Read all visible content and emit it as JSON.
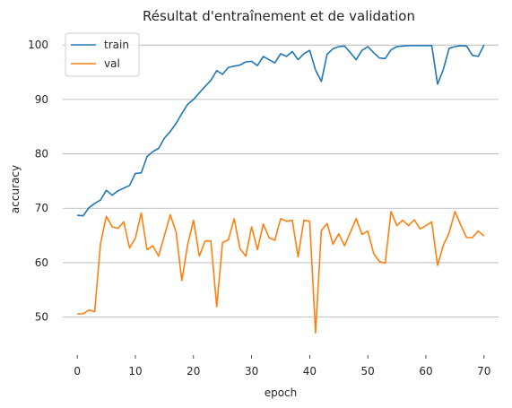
{
  "chart_data": {
    "type": "line",
    "title": "Résultat d'entraînement et de validation",
    "xlabel": "epoch",
    "ylabel": "accuracy",
    "xlim": [
      -2.5,
      72.5
    ],
    "ylim": [
      44.5,
      102.5
    ],
    "xticks": [
      0,
      10,
      20,
      30,
      40,
      50,
      60,
      70
    ],
    "yticks": [
      50,
      60,
      70,
      80,
      90,
      100
    ],
    "grid": "horizontal",
    "legend_position": "top-left",
    "series": [
      {
        "name": "train",
        "color": "#1f77b4",
        "x": [
          0,
          1,
          2,
          3,
          4,
          5,
          6,
          7,
          8,
          9,
          10,
          11,
          12,
          13,
          14,
          15,
          16,
          17,
          18,
          19,
          20,
          21,
          22,
          23,
          24,
          25,
          26,
          27,
          28,
          29,
          30,
          31,
          32,
          33,
          34,
          35,
          36,
          37,
          38,
          39,
          40,
          41,
          42,
          43,
          44,
          45,
          46,
          47,
          48,
          49,
          50,
          51,
          52,
          53,
          54,
          55,
          56,
          57,
          58,
          59,
          60,
          61,
          62,
          63,
          64,
          65,
          66,
          67,
          68,
          69,
          70
        ],
        "values": [
          68.7,
          68.6,
          70.1,
          70.9,
          71.5,
          73.3,
          72.4,
          73.2,
          73.7,
          74.2,
          76.4,
          76.5,
          79.5,
          80.4,
          81.0,
          82.9,
          84.1,
          85.6,
          87.4,
          89.1,
          90.0,
          91.2,
          92.4,
          93.5,
          95.3,
          94.6,
          95.9,
          96.1,
          96.3,
          96.9,
          97.0,
          96.2,
          97.9,
          97.3,
          96.7,
          98.4,
          97.9,
          98.8,
          97.3,
          98.4,
          99.0,
          95.4,
          93.3,
          98.3,
          99.3,
          99.7,
          99.8,
          98.6,
          97.3,
          99.0,
          99.7,
          98.6,
          97.6,
          97.5,
          99.1,
          99.7,
          99.8,
          99.9,
          99.9,
          99.9,
          99.9,
          99.9,
          92.8,
          95.5,
          99.4,
          99.7,
          99.9,
          99.8,
          98.1,
          97.9,
          100.0
        ]
      },
      {
        "name": "val",
        "color": "#ff7f0e",
        "x": [
          0,
          1,
          2,
          3,
          4,
          5,
          6,
          7,
          8,
          9,
          10,
          11,
          12,
          13,
          14,
          15,
          16,
          17,
          18,
          19,
          20,
          21,
          22,
          23,
          24,
          25,
          26,
          27,
          28,
          29,
          30,
          31,
          32,
          33,
          34,
          35,
          36,
          37,
          38,
          39,
          40,
          41,
          42,
          43,
          44,
          45,
          46,
          47,
          48,
          49,
          50,
          51,
          52,
          53,
          54,
          55,
          56,
          57,
          58,
          59,
          60,
          61,
          62,
          63,
          64,
          65,
          66,
          67,
          68,
          69,
          70
        ],
        "values": [
          50.6,
          50.6,
          51.3,
          51.0,
          63.5,
          68.5,
          66.6,
          66.3,
          67.5,
          62.7,
          64.5,
          69.1,
          62.4,
          63.1,
          61.2,
          65.0,
          68.8,
          65.6,
          56.7,
          63.3,
          67.8,
          61.2,
          64.0,
          64.0,
          51.9,
          63.7,
          64.2,
          68.1,
          62.6,
          61.2,
          66.6,
          62.4,
          67.1,
          64.6,
          64.1,
          68.1,
          67.6,
          67.8,
          61.1,
          67.8,
          67.6,
          47.1,
          65.9,
          67.2,
          63.4,
          65.3,
          63.1,
          65.6,
          68.1,
          65.2,
          65.8,
          61.7,
          60.2,
          59.9,
          69.4,
          66.8,
          67.8,
          66.8,
          67.9,
          66.2,
          66.8,
          67.5,
          59.5,
          63.2,
          65.5,
          69.4,
          66.9,
          64.6,
          64.6,
          65.8,
          64.9
        ]
      }
    ]
  }
}
